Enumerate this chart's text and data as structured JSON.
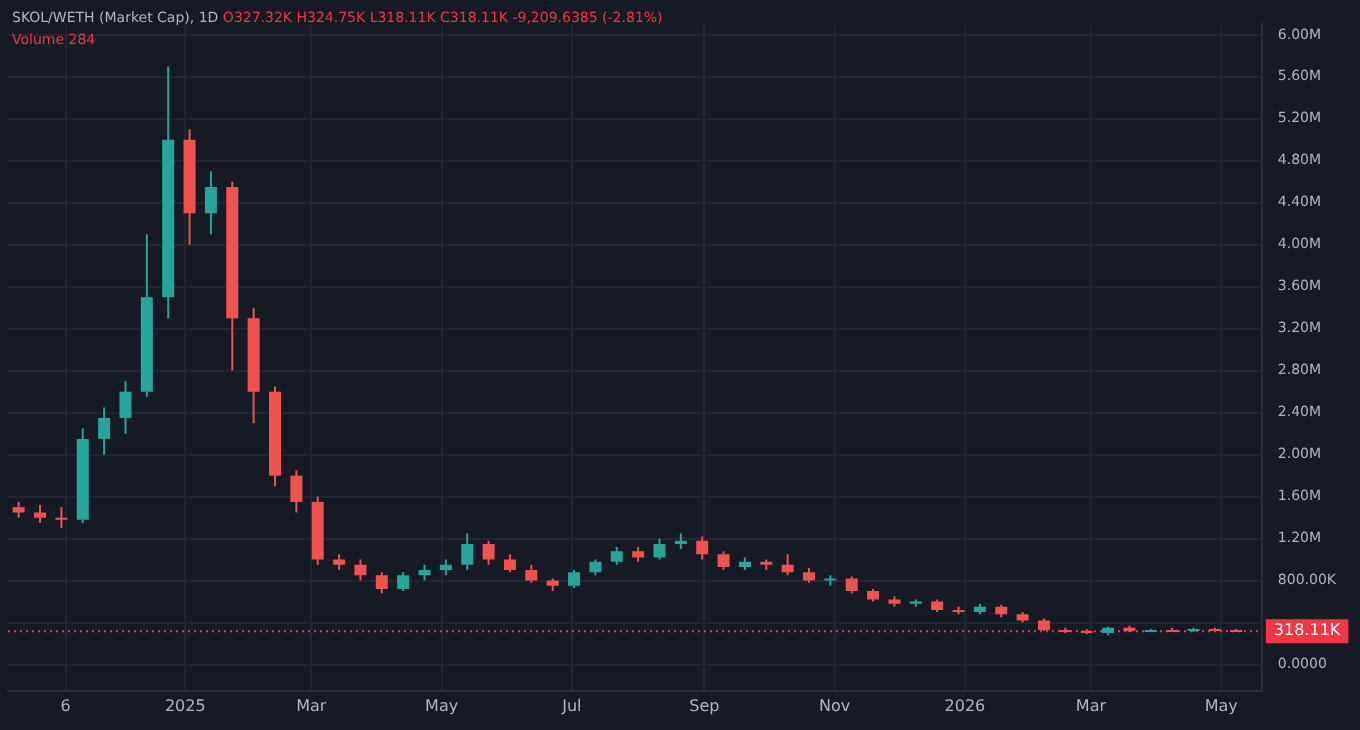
{
  "chart_data": {
    "type": "candlestick",
    "title": "SKOL/WETH (Market Cap), 1D",
    "annotations": [
      "O327.32K H324.75K L318.11K C318.11K -9,209.6385 (-2.81%)",
      "Volume 284"
    ],
    "x": [
      "2024-10-15",
      "2024-10-25",
      "2024-11-04",
      "2024-11-14",
      "2024-11-24",
      "2024-12-04",
      "2024-12-14",
      "2024-12-24",
      "2025-01-03",
      "2025-01-13",
      "2025-01-23",
      "2025-02-02",
      "2025-02-12",
      "2025-02-22",
      "2025-03-04",
      "2025-03-14",
      "2025-03-24",
      "2025-04-03",
      "2025-04-13",
      "2025-04-23",
      "2025-05-03",
      "2025-05-13",
      "2025-05-23",
      "2025-06-02",
      "2025-06-12",
      "2025-06-22",
      "2025-07-02",
      "2025-07-12",
      "2025-07-22",
      "2025-08-01",
      "2025-08-11",
      "2025-08-21",
      "2025-08-31",
      "2025-09-10",
      "2025-09-20",
      "2025-09-30",
      "2025-10-10",
      "2025-10-20",
      "2025-10-30",
      "2025-11-09",
      "2025-11-19",
      "2025-11-29",
      "2025-12-09",
      "2025-12-19",
      "2025-12-29",
      "2026-01-08",
      "2026-01-18",
      "2026-01-28",
      "2026-02-07",
      "2026-02-17",
      "2026-02-27",
      "2026-03-09",
      "2026-03-19",
      "2026-03-29",
      "2026-04-08",
      "2026-04-18",
      "2026-04-28",
      "2026-05-08"
    ],
    "ohlc": [
      [
        1500000,
        1550000,
        1400000,
        1450000
      ],
      [
        1450000,
        1520000,
        1350000,
        1400000
      ],
      [
        1400000,
        1500000,
        1300000,
        1380000
      ],
      [
        1380000,
        2250000,
        1350000,
        2150000
      ],
      [
        2150000,
        2450000,
        2000000,
        2350000
      ],
      [
        2350000,
        2700000,
        2200000,
        2600000
      ],
      [
        2600000,
        4100000,
        2550000,
        3500000
      ],
      [
        3500000,
        5700000,
        3300000,
        5000000
      ],
      [
        5000000,
        5100000,
        4000000,
        4300000
      ],
      [
        4300000,
        4700000,
        4100000,
        4550000
      ],
      [
        4550000,
        4600000,
        2800000,
        3300000
      ],
      [
        3300000,
        3400000,
        2300000,
        2600000
      ],
      [
        2600000,
        2650000,
        1700000,
        1800000
      ],
      [
        1800000,
        1850000,
        1450000,
        1550000
      ],
      [
        1550000,
        1600000,
        950000,
        1000000
      ],
      [
        1000000,
        1050000,
        900000,
        950000
      ],
      [
        950000,
        1000000,
        800000,
        850000
      ],
      [
        850000,
        880000,
        680000,
        720000
      ],
      [
        720000,
        880000,
        700000,
        850000
      ],
      [
        850000,
        950000,
        800000,
        900000
      ],
      [
        900000,
        1000000,
        850000,
        950000
      ],
      [
        950000,
        1250000,
        900000,
        1150000
      ],
      [
        1150000,
        1180000,
        950000,
        1000000
      ],
      [
        1000000,
        1050000,
        880000,
        900000
      ],
      [
        900000,
        950000,
        780000,
        800000
      ],
      [
        800000,
        820000,
        700000,
        750000
      ],
      [
        750000,
        900000,
        730000,
        880000
      ],
      [
        880000,
        1000000,
        850000,
        980000
      ],
      [
        980000,
        1120000,
        950000,
        1080000
      ],
      [
        1080000,
        1120000,
        980000,
        1020000
      ],
      [
        1020000,
        1200000,
        1000000,
        1150000
      ],
      [
        1150000,
        1250000,
        1100000,
        1180000
      ],
      [
        1180000,
        1220000,
        1000000,
        1050000
      ],
      [
        1050000,
        1080000,
        900000,
        930000
      ],
      [
        930000,
        1020000,
        900000,
        980000
      ],
      [
        980000,
        1000000,
        900000,
        950000
      ],
      [
        950000,
        1050000,
        850000,
        880000
      ],
      [
        880000,
        920000,
        780000,
        800000
      ],
      [
        800000,
        850000,
        750000,
        820000
      ],
      [
        820000,
        840000,
        680000,
        700000
      ],
      [
        700000,
        720000,
        600000,
        620000
      ],
      [
        620000,
        650000,
        550000,
        580000
      ],
      [
        580000,
        620000,
        550000,
        600000
      ],
      [
        600000,
        620000,
        500000,
        520000
      ],
      [
        520000,
        550000,
        480000,
        500000
      ],
      [
        500000,
        580000,
        480000,
        550000
      ],
      [
        550000,
        570000,
        450000,
        480000
      ],
      [
        480000,
        500000,
        400000,
        420000
      ],
      [
        420000,
        440000,
        320000,
        330000
      ],
      [
        330000,
        350000,
        300000,
        320000
      ],
      [
        320000,
        340000,
        290000,
        300000
      ],
      [
        300000,
        360000,
        280000,
        350000
      ],
      [
        350000,
        370000,
        310000,
        320000
      ],
      [
        320000,
        340000,
        310000,
        330000
      ],
      [
        330000,
        350000,
        310000,
        320000
      ],
      [
        320000,
        350000,
        310000,
        340000
      ],
      [
        340000,
        350000,
        320000,
        330000
      ],
      [
        330000,
        340000,
        318110,
        318110
      ]
    ],
    "colors": [
      "#ef5350",
      "#ef5350",
      "#ef5350",
      "#26a69a",
      "#26a69a",
      "#26a69a",
      "#26a69a",
      "#26a69a",
      "#ef5350",
      "#26a69a",
      "#ef5350",
      "#ef5350",
      "#ef5350",
      "#ef5350",
      "#ef5350",
      "#ef5350",
      "#ef5350",
      "#ef5350",
      "#26a69a",
      "#26a69a",
      "#26a69a",
      "#26a69a",
      "#ef5350",
      "#ef5350",
      "#ef5350",
      "#ef5350",
      "#26a69a",
      "#26a69a",
      "#26a69a",
      "#ef5350",
      "#26a69a",
      "#26a69a",
      "#ef5350",
      "#ef5350",
      "#26a69a",
      "#ef5350",
      "#ef5350",
      "#ef5350",
      "#26a69a",
      "#ef5350",
      "#ef5350",
      "#ef5350",
      "#26a69a",
      "#ef5350",
      "#ef5350",
      "#26a69a",
      "#ef5350",
      "#ef5350",
      "#ef5350",
      "#ef5350",
      "#ef5350",
      "#26a69a",
      "#ef5350",
      "#26a69a",
      "#ef5350",
      "#26a69a",
      "#ef5350",
      "#ef5350"
    ],
    "xlim": [
      "2024-10-10",
      "2026-05-20"
    ],
    "xticks": [
      {
        "value": "2024-11-06",
        "label": "6"
      },
      {
        "value": "2025-01-01",
        "label": "2025"
      },
      {
        "value": "2025-03-01",
        "label": "Mar"
      },
      {
        "value": "2025-05-01",
        "label": "May"
      },
      {
        "value": "2025-07-01",
        "label": "Jul"
      },
      {
        "value": "2025-09-01",
        "label": "Sep"
      },
      {
        "value": "2025-11-01",
        "label": "Nov"
      },
      {
        "value": "2026-01-01",
        "label": "2026"
      },
      {
        "value": "2026-03-01",
        "label": "Mar"
      },
      {
        "value": "2026-05-01",
        "label": "May"
      }
    ],
    "ylim": [
      -250000,
      6100000
    ],
    "yticks": [
      {
        "value": 0,
        "label": "0.0000"
      },
      {
        "value": 400000,
        "label": null
      },
      {
        "value": 800000,
        "label": "800.00K"
      },
      {
        "value": 1200000,
        "label": "1.20M"
      },
      {
        "value": 1600000,
        "label": "1.60M"
      },
      {
        "value": 2000000,
        "label": "2.00M"
      },
      {
        "value": 2400000,
        "label": "2.40M"
      },
      {
        "value": 2800000,
        "label": "2.80M"
      },
      {
        "value": 3200000,
        "label": "3.20M"
      },
      {
        "value": 3600000,
        "label": "3.60M"
      },
      {
        "value": 4000000,
        "label": "4.00M"
      },
      {
        "value": 4400000,
        "label": "4.40M"
      },
      {
        "value": 4800000,
        "label": "4.80M"
      },
      {
        "value": 5200000,
        "label": "5.20M"
      },
      {
        "value": 5600000,
        "label": "5.60M"
      },
      {
        "value": 6000000,
        "label": "6.00M"
      }
    ],
    "ref_lines": [
      {
        "axis": "y",
        "value": 318110,
        "label": "318.11K",
        "color": "#f23645",
        "line_style": "dotted"
      }
    ],
    "grid": true,
    "legend": false
  }
}
